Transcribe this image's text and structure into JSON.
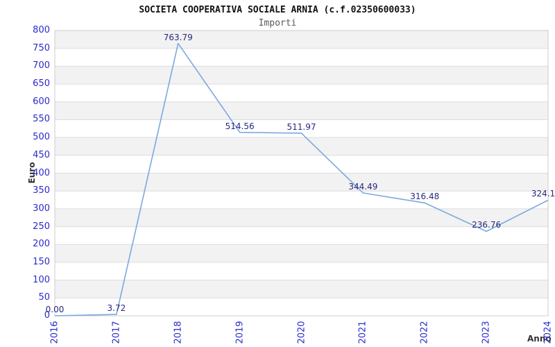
{
  "page": {
    "background": "#ffffff"
  },
  "chart_data": {
    "type": "line",
    "title": "SOCIETA COOPERATIVA SOCIALE ARNIA (c.f.02350600033)",
    "subtitle": "Importi",
    "xlabel": "Anno",
    "ylabel": "Euro",
    "categories": [
      "2016",
      "2017",
      "2018",
      "2019",
      "2020",
      "2021",
      "2022",
      "2023",
      "2024"
    ],
    "values": [
      0,
      3.72,
      763.79,
      514.56,
      511.97,
      344.49,
      316.48,
      236.76,
      324.1
    ],
    "point_labels": [
      "0.00",
      "3.72",
      "763.79",
      "514.56",
      "511.97",
      "344.49",
      "316.48",
      "236.76",
      "324.1"
    ],
    "ylim": [
      0,
      800
    ],
    "ytick_step": 50,
    "grid": true,
    "legend": "none",
    "banded_background": true,
    "colors": {
      "line": "#7aa8e0",
      "tick_label": "#2a2ace",
      "point_label": "#27277f",
      "band": "#f2f2f2",
      "grid_line": "#dcdcdc",
      "border": "#cccccc",
      "title": "#111111",
      "subtitle": "#595959",
      "axis_title": "#333333"
    }
  }
}
